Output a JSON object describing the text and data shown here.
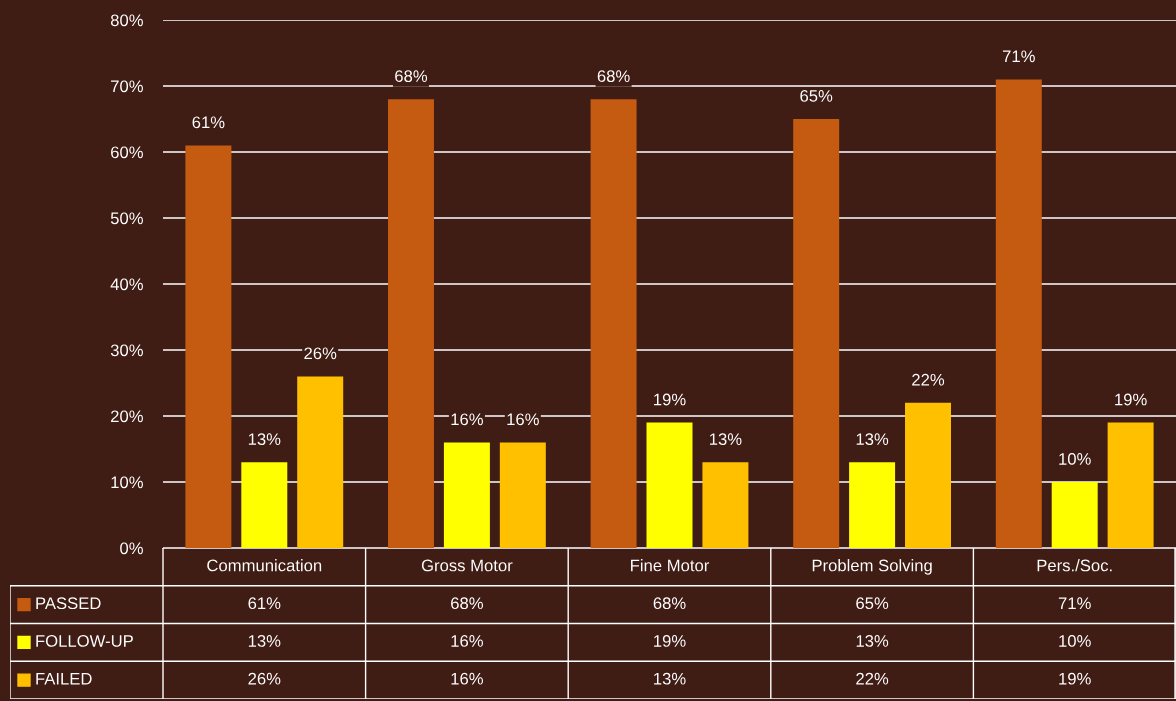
{
  "chart_data": {
    "type": "bar",
    "categories": [
      "Communication",
      "Gross Motor",
      "Fine Motor",
      "Problem Solving",
      "Pers./Soc."
    ],
    "series": [
      {
        "name": "PASSED",
        "color": "#c55a11",
        "values": [
          61,
          68,
          68,
          65,
          71
        ],
        "value_labels": [
          "61%",
          "68%",
          "68%",
          "65%",
          "71%"
        ]
      },
      {
        "name": "FOLLOW-UP",
        "color": "#ffff00",
        "values": [
          13,
          16,
          19,
          13,
          10
        ],
        "value_labels": [
          "13%",
          "16%",
          "19%",
          "13%",
          "10%"
        ]
      },
      {
        "name": "FAILED",
        "color": "#ffc000",
        "values": [
          26,
          16,
          13,
          22,
          19
        ],
        "value_labels": [
          "26%",
          "16%",
          "13%",
          "22%",
          "19%"
        ]
      }
    ],
    "ylim": [
      0,
      80
    ],
    "yticks": [
      {
        "value": 0,
        "label": "0%"
      },
      {
        "value": 10,
        "label": "10%"
      },
      {
        "value": 20,
        "label": "20%"
      },
      {
        "value": 30,
        "label": "30%"
      },
      {
        "value": 40,
        "label": "40%"
      },
      {
        "value": 50,
        "label": "50%"
      },
      {
        "value": 60,
        "label": "60%"
      },
      {
        "value": 70,
        "label": "70%"
      },
      {
        "value": 80,
        "label": "80%"
      }
    ],
    "grid": "y",
    "legend": "bottom left"
  }
}
